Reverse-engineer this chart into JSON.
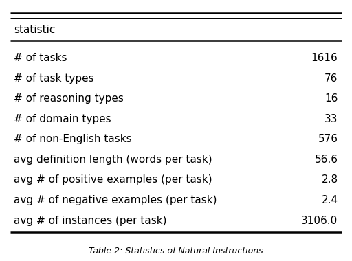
{
  "caption": "Table 2: Statistics of Natural Instructions",
  "header": "statistic",
  "rows": [
    [
      "# of tasks",
      "1616"
    ],
    [
      "# of task types",
      "76"
    ],
    [
      "# of reasoning types",
      "16"
    ],
    [
      "# of domain types",
      "33"
    ],
    [
      "# of non-English tasks",
      "576"
    ],
    [
      "avg definition length (words per task)",
      "56.6"
    ],
    [
      "avg # of positive examples (per task)",
      "2.8"
    ],
    [
      "avg # of negative examples (per task)",
      "2.4"
    ],
    [
      "avg # of instances (per task)",
      "3106.0"
    ]
  ],
  "bg_color": "#ffffff",
  "text_color": "#000000",
  "font_size": 11,
  "header_font_size": 11,
  "caption_font_size": 9
}
